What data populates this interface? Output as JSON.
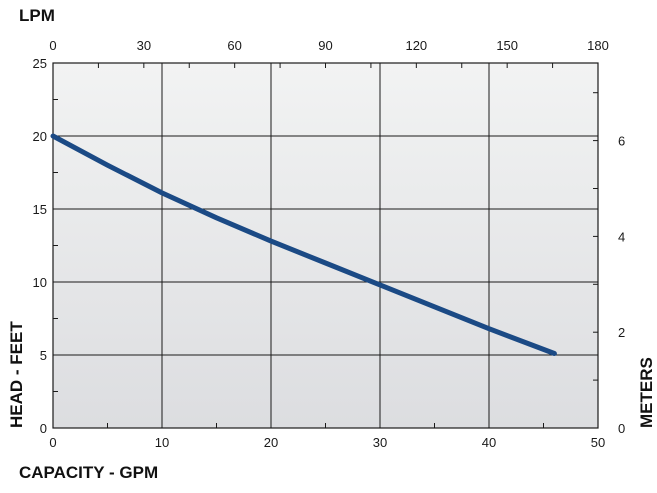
{
  "chart_data": {
    "type": "line",
    "title": "",
    "xlabel": "CAPACITY - GPM",
    "ylabel": "HEAD - FEET",
    "x2label": "LPM",
    "y2label": "METERS",
    "xlim": [
      0,
      50
    ],
    "ylim": [
      0,
      25
    ],
    "x2lim": [
      0,
      180
    ],
    "y2lim": [
      0,
      7.62
    ],
    "x_ticks": [
      "0",
      "10",
      "20",
      "30",
      "40",
      "50"
    ],
    "y_ticks": [
      "0",
      "5",
      "10",
      "15",
      "20",
      "25"
    ],
    "x2_ticks": [
      "0",
      "30",
      "60",
      "90",
      "120",
      "150",
      "180"
    ],
    "y2_ticks": [
      "0",
      "2",
      "4",
      "6"
    ],
    "grid": true,
    "series": [
      {
        "x": [
          0,
          5,
          10,
          15,
          20,
          25,
          30,
          35,
          40,
          46
        ],
        "y": [
          20,
          18,
          16.1,
          14.4,
          12.8,
          11.3,
          9.8,
          8.3,
          6.8,
          5.1
        ],
        "color": "#1b4a85"
      }
    ],
    "background_gradient": [
      "#f2f3f3",
      "#dcdde0"
    ]
  }
}
